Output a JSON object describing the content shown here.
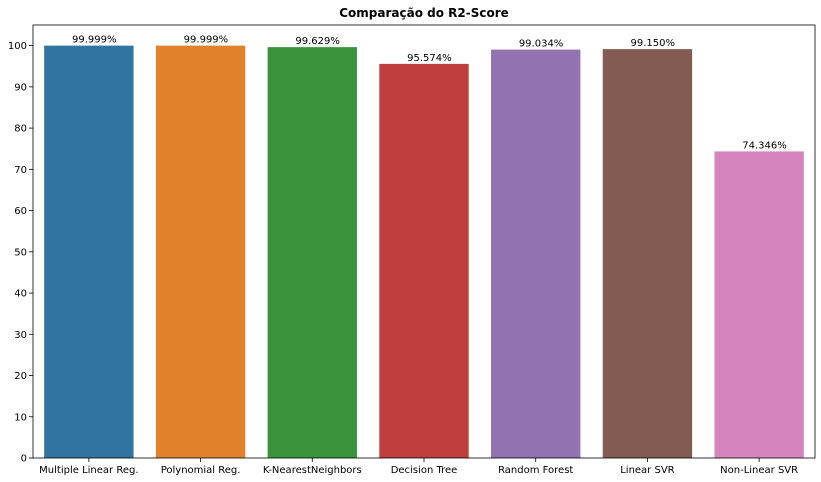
{
  "chart_data": {
    "type": "bar",
    "title": "Comparação do R2-Score",
    "xlabel": "",
    "ylabel": "",
    "ylim": [
      0,
      105
    ],
    "yticks": [
      0,
      10,
      20,
      30,
      40,
      50,
      60,
      70,
      80,
      90,
      100
    ],
    "grid": false,
    "categories": [
      "Multiple Linear Reg.",
      "Polynomial Reg.",
      "K-NearestNeighbors",
      "Decision Tree",
      "Random Forest",
      "Linear SVR",
      "Non-Linear SVR"
    ],
    "values": [
      99.999,
      99.999,
      99.629,
      95.574,
      99.034,
      99.15,
      74.346
    ],
    "data_labels": [
      "99.999%",
      "99.999%",
      "99.629%",
      "95.574%",
      "99.034%",
      "99.150%",
      "74.346%"
    ],
    "colors": [
      "#3274a1",
      "#e1812c",
      "#3a923a",
      "#c03d3e",
      "#9372b2",
      "#845b53",
      "#d684bd"
    ]
  }
}
